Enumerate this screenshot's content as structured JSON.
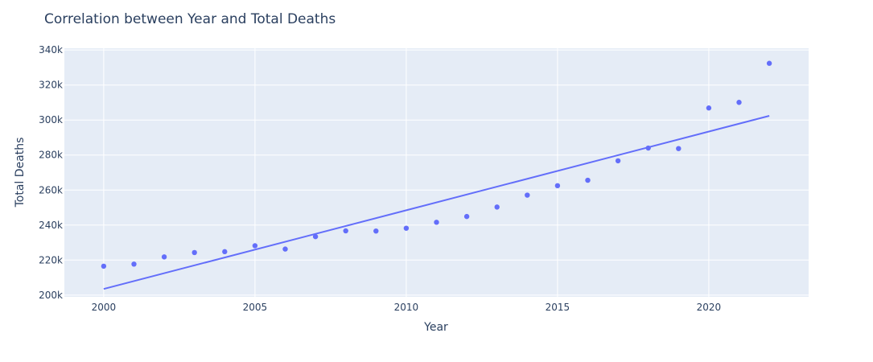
{
  "chart_data": {
    "type": "scatter",
    "title": "Correlation between Year and Total Deaths",
    "xlabel": "Year",
    "ylabel": "Total Deaths",
    "xlim": [
      1998.7,
      2023.3
    ],
    "ylim": [
      199000,
      341000
    ],
    "x_ticks": [
      2000,
      2005,
      2010,
      2015,
      2020
    ],
    "x_tick_labels": [
      "2000",
      "2005",
      "2010",
      "2015",
      "2020"
    ],
    "y_ticks": [
      200000,
      220000,
      240000,
      260000,
      280000,
      300000,
      320000,
      340000
    ],
    "y_tick_labels": [
      "200k",
      "220k",
      "240k",
      "260k",
      "280k",
      "300k",
      "320k",
      "340k"
    ],
    "grid": true,
    "colors": {
      "marker": "#636efa",
      "plot_bg": "#e5ecf6",
      "grid": "#ffffff",
      "text": "#2a3f5f"
    },
    "series": [
      {
        "mode": "markers",
        "x": [
          2000,
          2001,
          2002,
          2003,
          2004,
          2005,
          2006,
          2007,
          2008,
          2009,
          2010,
          2011,
          2012,
          2013,
          2014,
          2015,
          2016,
          2017,
          2018,
          2019,
          2020,
          2021,
          2022
        ],
        "y": [
          216500,
          217700,
          221800,
          224300,
          224800,
          228200,
          226300,
          233400,
          236700,
          236600,
          238200,
          241600,
          244900,
          250300,
          257100,
          262500,
          265600,
          276700,
          284000,
          283700,
          306900,
          310100,
          332400
        ]
      },
      {
        "mode": "lines",
        "x": [
          2000,
          2022
        ],
        "y": [
          203500,
          302400
        ]
      }
    ]
  }
}
